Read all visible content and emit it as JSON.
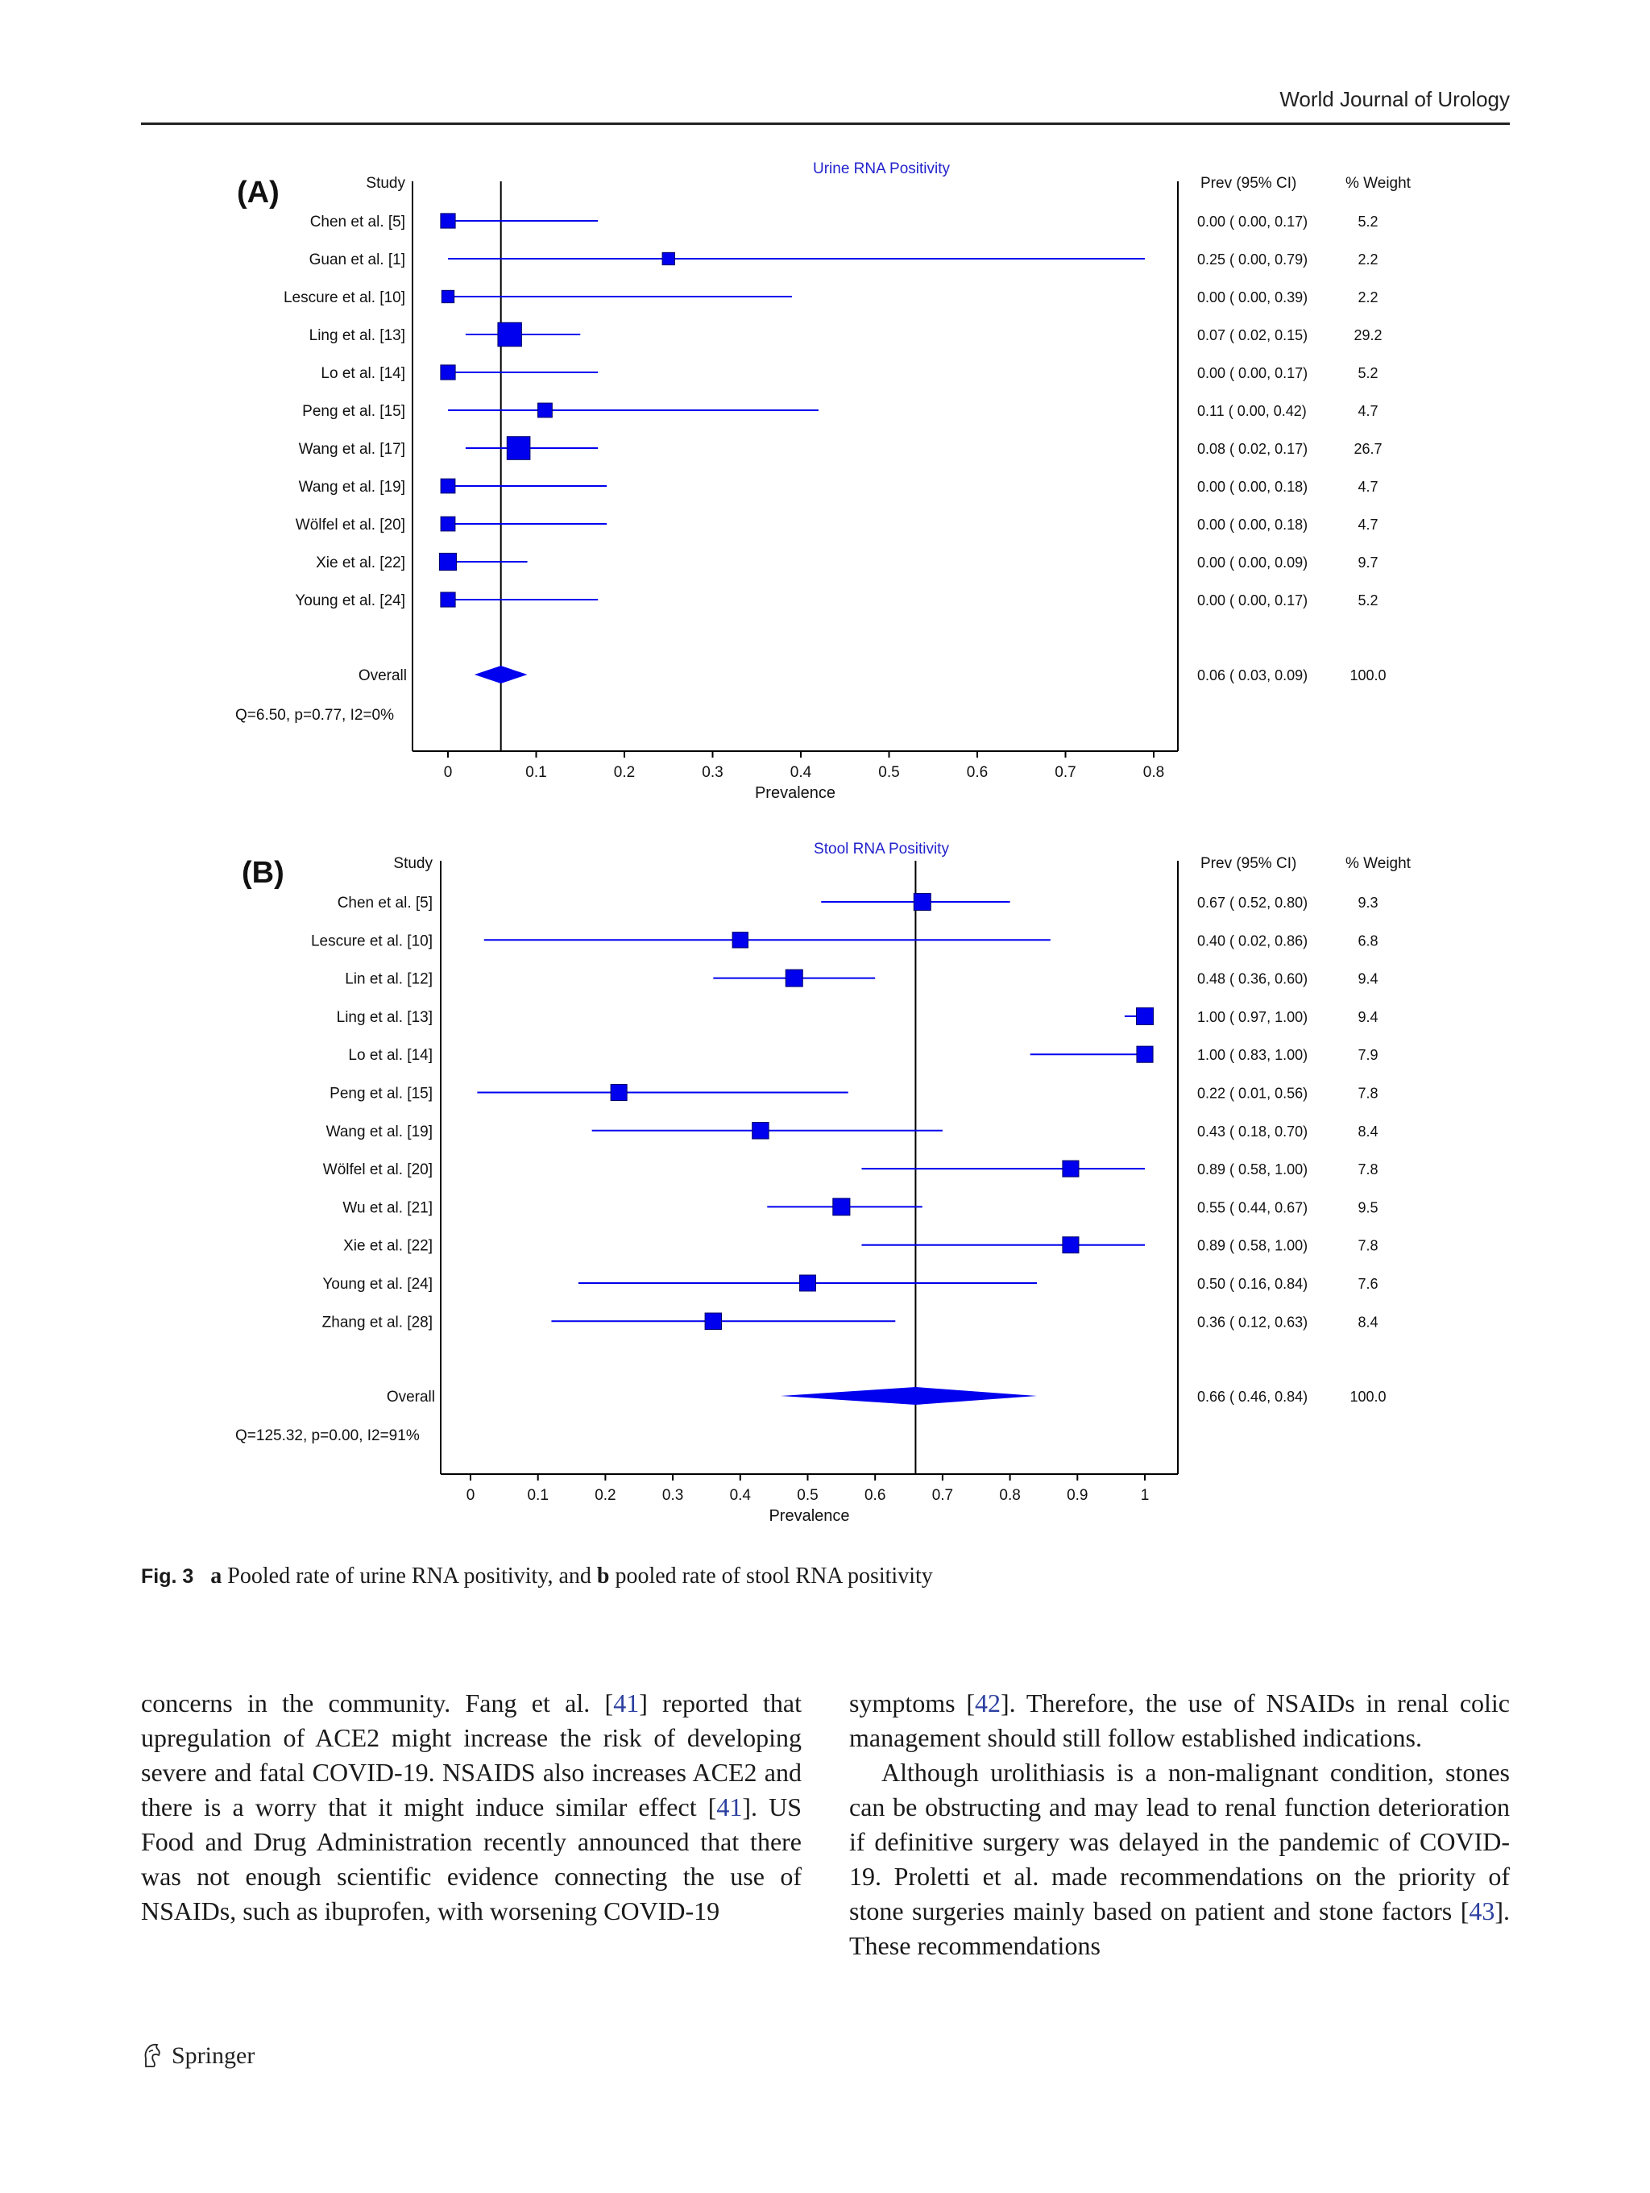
{
  "header": {
    "journal": "World Journal of Urology"
  },
  "chart_data": [
    {
      "type": "forest",
      "panel_label": "(A)",
      "title": "Urine RNA Positivity",
      "column_headers": {
        "study": "Study",
        "prev": "Prev (95% CI)",
        "weight": "% Weight"
      },
      "xlabel": "Prevalence",
      "xlim": [
        -0.04,
        0.82
      ],
      "ticks": [
        0,
        0.1,
        0.2,
        0.3,
        0.4,
        0.5,
        0.6,
        0.7,
        0.8
      ],
      "tick_labels": [
        "0",
        "0.1",
        "0.2",
        "0.3",
        "0.4",
        "0.5",
        "0.6",
        "0.7",
        "0.8"
      ],
      "studies": [
        {
          "name": "Chen et al. [5]",
          "prev": 0.0,
          "lo": 0.0,
          "hi": 0.17,
          "weight": 5.2,
          "text": "0.00  (  0.00,  0.17)",
          "wtext": "5.2"
        },
        {
          "name": "Guan et al. [1]",
          "prev": 0.25,
          "lo": 0.0,
          "hi": 0.79,
          "weight": 2.2,
          "text": "0.25  (  0.00,  0.79)",
          "wtext": "2.2"
        },
        {
          "name": "Lescure et al. [10]",
          "prev": 0.0,
          "lo": 0.0,
          "hi": 0.39,
          "weight": 2.2,
          "text": "0.00  (  0.00,  0.39)",
          "wtext": "2.2"
        },
        {
          "name": "Ling et al. [13]",
          "prev": 0.07,
          "lo": 0.02,
          "hi": 0.15,
          "weight": 29.2,
          "text": "0.07  (  0.02,  0.15)",
          "wtext": "29.2"
        },
        {
          "name": "Lo et al. [14]",
          "prev": 0.0,
          "lo": 0.0,
          "hi": 0.17,
          "weight": 5.2,
          "text": "0.00  (  0.00,  0.17)",
          "wtext": "5.2"
        },
        {
          "name": "Peng et al. [15]",
          "prev": 0.11,
          "lo": 0.0,
          "hi": 0.42,
          "weight": 4.7,
          "text": "0.11  (  0.00,  0.42)",
          "wtext": "4.7"
        },
        {
          "name": "Wang et al. [17]",
          "prev": 0.08,
          "lo": 0.02,
          "hi": 0.17,
          "weight": 26.7,
          "text": "0.08  (  0.02,  0.17)",
          "wtext": "26.7"
        },
        {
          "name": "Wang et al. [19]",
          "prev": 0.0,
          "lo": 0.0,
          "hi": 0.18,
          "weight": 4.7,
          "text": "0.00  (  0.00,  0.18)",
          "wtext": "4.7"
        },
        {
          "name": "Wölfel et al. [20]",
          "prev": 0.0,
          "lo": 0.0,
          "hi": 0.18,
          "weight": 4.7,
          "text": "0.00  (  0.00,  0.18)",
          "wtext": "4.7"
        },
        {
          "name": "Xie et al. [22]",
          "prev": 0.0,
          "lo": 0.0,
          "hi": 0.09,
          "weight": 9.7,
          "text": "0.00  (  0.00,  0.09)",
          "wtext": "9.7"
        },
        {
          "name": "Young et al. [24]",
          "prev": 0.0,
          "lo": 0.0,
          "hi": 0.17,
          "weight": 5.2,
          "text": "0.00  (  0.00,  0.17)",
          "wtext": "5.2"
        }
      ],
      "overall": {
        "label": "Overall",
        "prev": 0.06,
        "lo": 0.03,
        "hi": 0.09,
        "weight": 100.0,
        "text": "0.06  (  0.03,  0.09)",
        "wtext": "100.0"
      },
      "heterogeneity": "Q=6.50, p=0.77, I2=0%"
    },
    {
      "type": "forest",
      "panel_label": "(B)",
      "title": "Stool RNA Positivity",
      "column_headers": {
        "study": "Study",
        "prev": "Prev (95% CI)",
        "weight": "% Weight"
      },
      "xlabel": "Prevalence",
      "xlim": [
        -0.04,
        1.05
      ],
      "ticks": [
        0,
        0.1,
        0.2,
        0.3,
        0.4,
        0.5,
        0.6,
        0.7,
        0.8,
        0.9,
        1
      ],
      "tick_labels": [
        "0",
        "0.1",
        "0.2",
        "0.3",
        "0.4",
        "0.5",
        "0.6",
        "0.7",
        "0.8",
        "0.9",
        "1"
      ],
      "studies": [
        {
          "name": "Chen et al. [5]",
          "prev": 0.67,
          "lo": 0.52,
          "hi": 0.8,
          "weight": 9.3,
          "text": "0.67  (  0.52,  0.80)",
          "wtext": "9.3"
        },
        {
          "name": "Lescure et al. [10]",
          "prev": 0.4,
          "lo": 0.02,
          "hi": 0.86,
          "weight": 6.8,
          "text": "0.40  (  0.02,  0.86)",
          "wtext": "6.8"
        },
        {
          "name": "Lin et al. [12]",
          "prev": 0.48,
          "lo": 0.36,
          "hi": 0.6,
          "weight": 9.4,
          "text": "0.48  (  0.36,  0.60)",
          "wtext": "9.4"
        },
        {
          "name": "Ling et al. [13]",
          "prev": 1.0,
          "lo": 0.97,
          "hi": 1.0,
          "weight": 9.4,
          "text": "1.00  (  0.97,  1.00)",
          "wtext": "9.4"
        },
        {
          "name": "Lo et al. [14]",
          "prev": 1.0,
          "lo": 0.83,
          "hi": 1.0,
          "weight": 7.9,
          "text": "1.00  (  0.83,  1.00)",
          "wtext": "7.9"
        },
        {
          "name": "Peng et al. [15]",
          "prev": 0.22,
          "lo": 0.01,
          "hi": 0.56,
          "weight": 7.8,
          "text": "0.22  (  0.01,  0.56)",
          "wtext": "7.8"
        },
        {
          "name": "Wang et al. [19]",
          "prev": 0.43,
          "lo": 0.18,
          "hi": 0.7,
          "weight": 8.4,
          "text": "0.43  (  0.18,  0.70)",
          "wtext": "8.4"
        },
        {
          "name": "Wölfel et al. [20]",
          "prev": 0.89,
          "lo": 0.58,
          "hi": 1.0,
          "weight": 7.8,
          "text": "0.89  (  0.58,  1.00)",
          "wtext": "7.8"
        },
        {
          "name": "Wu et al. [21]",
          "prev": 0.55,
          "lo": 0.44,
          "hi": 0.67,
          "weight": 9.5,
          "text": "0.55  (  0.44,  0.67)",
          "wtext": "9.5"
        },
        {
          "name": "Xie et al. [22]",
          "prev": 0.89,
          "lo": 0.58,
          "hi": 1.0,
          "weight": 7.8,
          "text": "0.89  (  0.58,  1.00)",
          "wtext": "7.8"
        },
        {
          "name": "Young et al. [24]",
          "prev": 0.5,
          "lo": 0.16,
          "hi": 0.84,
          "weight": 7.6,
          "text": "0.50  (  0.16,  0.84)",
          "wtext": "7.6"
        },
        {
          "name": "Zhang et al. [28]",
          "prev": 0.36,
          "lo": 0.12,
          "hi": 0.63,
          "weight": 8.4,
          "text": "0.36  (  0.12,  0.63)",
          "wtext": "8.4"
        }
      ],
      "overall": {
        "label": "Overall",
        "prev": 0.66,
        "lo": 0.46,
        "hi": 0.84,
        "weight": 100.0,
        "text": "0.66  (  0.46,  0.84)",
        "wtext": "100.0"
      },
      "heterogeneity": "Q=125.32, p=0.00, I2=91%"
    }
  ],
  "colors": {
    "marker": "#0000ee",
    "axis": "#000000",
    "title": "#2222cc"
  },
  "caption": {
    "fig": "Fig. 3",
    "a_letter": "a",
    "a_text": " Pooled rate of urine RNA positivity, and ",
    "b_letter": "b",
    "b_text": " pooled rate of stool RNA positivity"
  },
  "body": {
    "col1": [
      {
        "t": "concerns in the community. Fang et al. ["
      },
      {
        "r": "41"
      },
      {
        "t": "] reported that upregulation of ACE2 might increase the risk of developing severe and fatal COVID-19. NSAIDS also increases ACE2 and there is a worry that it might induce similar effect ["
      },
      {
        "r": "41"
      },
      {
        "t": "]. US Food and Drug Administration recently announced that there was not enough scientific evidence connecting the use of NSAIDs, such as ibuprofen, with worsening COVID-19"
      }
    ],
    "col2_p1": [
      {
        "t": "symptoms ["
      },
      {
        "r": "42"
      },
      {
        "t": "]. Therefore, the use of NSAIDs in renal colic management should still follow established indications."
      }
    ],
    "col2_p2": [
      {
        "t": "Although urolithiasis is a non-malignant condition, stones can be obstructing and may lead to renal function deterioration if definitive surgery was delayed in the pandemic of COVID-19. Proletti et al. made recommendations on the priority of stone surgeries mainly based on patient and stone factors ["
      },
      {
        "r": "43"
      },
      {
        "t": "]. These recommendations"
      }
    ]
  },
  "footer": {
    "publisher": "Springer",
    "publisher_icon": "springer-horse-icon"
  }
}
